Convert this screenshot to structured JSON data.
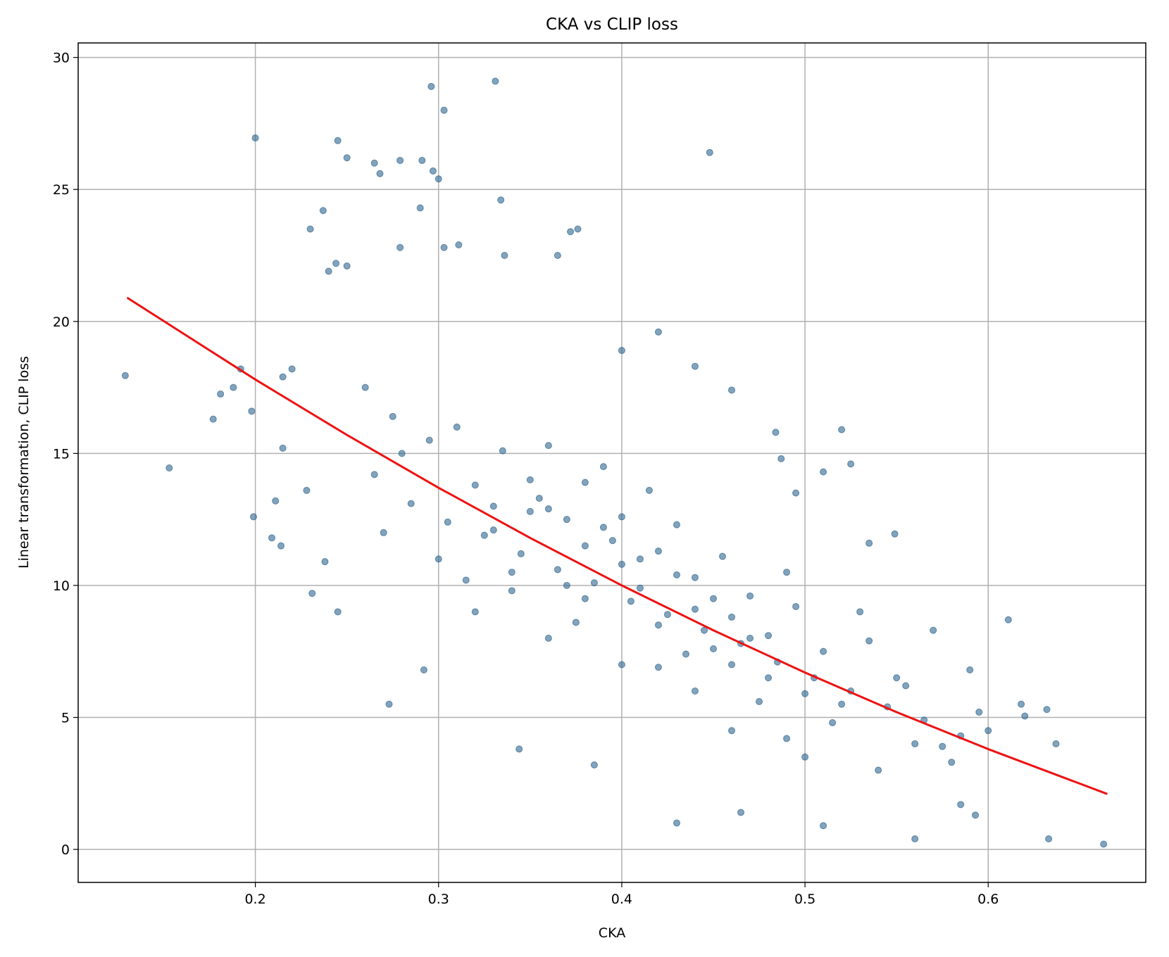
{
  "chart_data": {
    "type": "scatter",
    "title": "CKA vs CLIP loss",
    "xlabel": "CKA",
    "ylabel": "Linear transformation, CLIP loss",
    "xlim": [
      0.1033,
      0.686
    ],
    "ylim": [
      -1.25,
      30.55
    ],
    "xticks": [
      0.2,
      0.3,
      0.4,
      0.5,
      0.6
    ],
    "yticks": [
      0,
      5,
      10,
      15,
      20,
      25,
      30
    ],
    "grid": true,
    "series": [
      {
        "type": "scatter",
        "color": "#2f6690",
        "x": [
          0.129,
          0.153,
          0.2,
          0.296,
          0.331,
          0.303,
          0.448,
          0.245,
          0.25,
          0.265,
          0.279,
          0.291,
          0.297,
          0.268,
          0.3,
          0.29,
          0.334,
          0.237,
          0.23,
          0.376,
          0.372,
          0.279,
          0.311,
          0.303,
          0.365,
          0.336,
          0.24,
          0.244,
          0.25,
          0.177,
          0.181,
          0.188,
          0.192,
          0.198,
          0.199,
          0.209,
          0.211,
          0.214,
          0.215,
          0.215,
          0.22,
          0.228,
          0.231,
          0.238,
          0.245,
          0.273,
          0.292,
          0.344,
          0.385,
          0.43,
          0.465,
          0.51,
          0.56,
          0.633,
          0.663,
          0.611,
          0.618,
          0.632,
          0.637,
          0.62,
          0.6,
          0.593,
          0.585,
          0.549,
          0.52,
          0.525,
          0.51,
          0.44,
          0.42,
          0.4,
          0.46,
          0.484,
          0.487,
          0.495,
          0.535,
          0.26,
          0.27,
          0.28,
          0.3,
          0.31,
          0.32,
          0.33,
          0.34,
          0.35,
          0.36,
          0.37,
          0.38,
          0.39,
          0.4,
          0.41,
          0.42,
          0.43,
          0.44,
          0.45,
          0.46,
          0.47,
          0.48,
          0.49,
          0.5,
          0.51,
          0.52,
          0.53,
          0.54,
          0.55,
          0.56,
          0.57,
          0.58,
          0.59,
          0.265,
          0.285,
          0.305,
          0.325,
          0.345,
          0.365,
          0.385,
          0.405,
          0.425,
          0.445,
          0.465,
          0.485,
          0.505,
          0.525,
          0.545,
          0.565,
          0.585,
          0.275,
          0.295,
          0.315,
          0.335,
          0.355,
          0.375,
          0.395,
          0.415,
          0.435,
          0.455,
          0.475,
          0.495,
          0.515,
          0.535,
          0.555,
          0.575,
          0.595,
          0.32,
          0.34,
          0.36,
          0.38,
          0.4,
          0.42,
          0.44,
          0.46,
          0.48,
          0.5,
          0.33,
          0.35,
          0.37,
          0.39,
          0.41,
          0.43,
          0.45,
          0.47,
          0.49,
          0.36,
          0.38,
          0.4,
          0.42,
          0.44,
          0.46
        ],
        "y": [
          17.95,
          14.45,
          26.95,
          28.9,
          29.1,
          28.0,
          26.4,
          26.85,
          26.2,
          26.0,
          26.1,
          26.1,
          25.7,
          25.6,
          25.4,
          24.3,
          24.6,
          24.2,
          23.5,
          23.5,
          23.4,
          22.8,
          22.9,
          22.8,
          22.5,
          22.5,
          21.9,
          22.2,
          22.1,
          16.3,
          17.25,
          17.5,
          18.2,
          16.6,
          12.6,
          11.8,
          13.2,
          11.5,
          15.2,
          17.9,
          18.2,
          13.6,
          9.7,
          10.9,
          9.0,
          5.5,
          6.8,
          3.8,
          3.2,
          1.0,
          1.4,
          0.9,
          0.4,
          0.4,
          0.2,
          8.7,
          5.5,
          5.3,
          4.0,
          5.05,
          4.5,
          1.3,
          1.7,
          11.95,
          15.9,
          14.6,
          14.3,
          18.3,
          19.6,
          18.9,
          17.4,
          15.8,
          14.8,
          13.5,
          11.6,
          17.5,
          12.0,
          15.0,
          11.0,
          16.0,
          9.0,
          13.0,
          10.5,
          14.0,
          8.0,
          12.5,
          9.5,
          14.5,
          7.0,
          11.0,
          8.5,
          12.3,
          6.0,
          9.5,
          4.5,
          8.0,
          6.5,
          10.5,
          3.5,
          7.5,
          5.5,
          9.0,
          3.0,
          6.5,
          4.0,
          8.3,
          3.3,
          6.8,
          14.2,
          13.1,
          12.4,
          11.9,
          11.2,
          10.6,
          10.1,
          9.4,
          8.9,
          8.3,
          7.8,
          7.1,
          6.5,
          6.0,
          5.4,
          4.9,
          4.3,
          16.4,
          15.5,
          10.2,
          15.1,
          13.3,
          8.6,
          11.7,
          13.6,
          7.4,
          11.1,
          5.6,
          9.2,
          4.8,
          7.9,
          6.2,
          3.9,
          5.2,
          13.8,
          9.8,
          12.9,
          11.5,
          10.8,
          6.9,
          10.3,
          7.0,
          8.1,
          5.9,
          12.1,
          12.8,
          10.0,
          12.2,
          9.9,
          10.4,
          7.6,
          9.6,
          4.2,
          15.3,
          13.9,
          12.6,
          11.3,
          9.1,
          8.8
        ]
      },
      {
        "type": "line",
        "color": "#ee1111",
        "x": [
          0.13,
          0.2,
          0.25,
          0.3,
          0.35,
          0.4,
          0.45,
          0.5,
          0.55,
          0.6,
          0.665
        ],
        "y": [
          20.9,
          17.8,
          15.7,
          13.7,
          11.8,
          10.0,
          8.3,
          6.7,
          5.2,
          3.8,
          2.1
        ]
      }
    ]
  }
}
